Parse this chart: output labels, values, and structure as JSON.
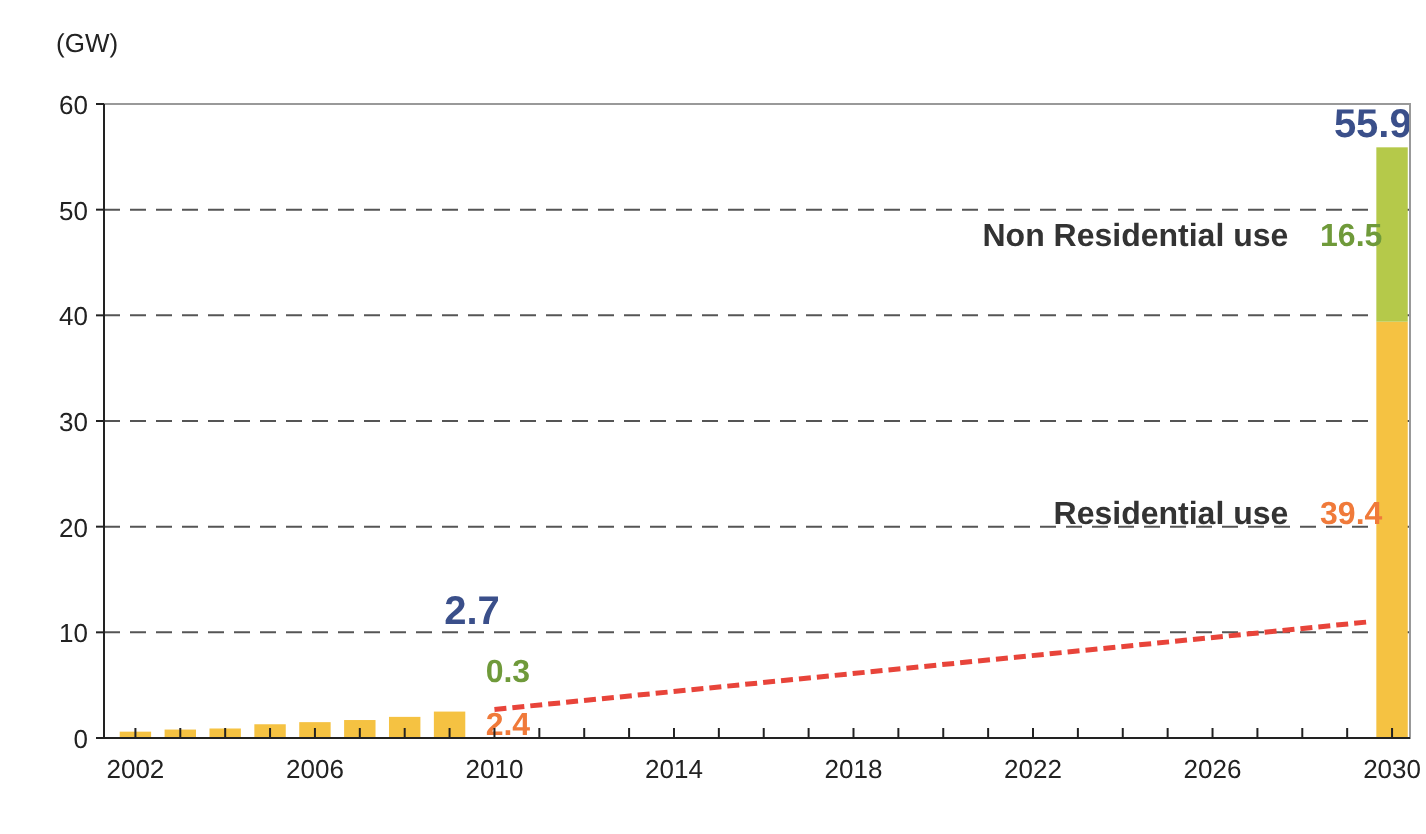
{
  "chart_data": {
    "type": "bar",
    "ylabel": "(GW)",
    "stacked": true,
    "grid": "y",
    "xlim": [
      2001.3,
      2030.4
    ],
    "xticks": [
      2002,
      {
        "value": 2003,
        "label": null
      },
      {
        "value": 2004,
        "label": null
      },
      {
        "value": 2005,
        "label": null
      },
      2006,
      {
        "value": 2007,
        "label": null
      },
      {
        "value": 2008,
        "label": null
      },
      {
        "value": 2009,
        "label": null
      },
      2010,
      {
        "value": 2011,
        "label": null
      },
      {
        "value": 2012,
        "label": null
      },
      {
        "value": 2013,
        "label": null
      },
      2014,
      {
        "value": 2015,
        "label": null
      },
      {
        "value": 2016,
        "label": null
      },
      {
        "value": 2017,
        "label": null
      },
      2018,
      {
        "value": 2019,
        "label": null
      },
      {
        "value": 2020,
        "label": null
      },
      {
        "value": 2021,
        "label": null
      },
      2022,
      {
        "value": 2023,
        "label": null
      },
      {
        "value": 2024,
        "label": null
      },
      {
        "value": 2025,
        "label": null
      },
      2026,
      {
        "value": 2027,
        "label": null
      },
      {
        "value": 2028,
        "label": null
      },
      {
        "value": 2029,
        "label": null
      },
      2030
    ],
    "ylim": [
      0,
      60
    ],
    "yticks": [
      0,
      10,
      20,
      30,
      40,
      50,
      60
    ],
    "x": [
      2002,
      2003,
      2004,
      2005,
      2006,
      2007,
      2008,
      2009,
      2030
    ],
    "series": [
      {
        "name": "Residential use",
        "color": "#f5c242",
        "values": [
          0.6,
          0.8,
          0.9,
          1.3,
          1.5,
          1.7,
          2.0,
          2.5,
          39.4
        ],
        "value_labels": [
          null,
          null,
          null,
          null,
          null,
          null,
          null,
          null,
          "39.4"
        ]
      },
      {
        "name": "Non Residential use",
        "color": "#b5c94a",
        "values": [
          null,
          null,
          null,
          null,
          null,
          null,
          null,
          null,
          16.5
        ],
        "value_labels": [
          null,
          null,
          null,
          null,
          null,
          null,
          null,
          null,
          "16.5"
        ]
      },
      {
        "type": "line",
        "color": "#e8443a",
        "line_style": "dashed",
        "x": [
          2010,
          2029.5
        ],
        "values": [
          2.7,
          11
        ]
      }
    ],
    "totals": [
      null,
      null,
      null,
      null,
      null,
      null,
      null,
      null,
      "55.9"
    ],
    "annotations": [
      "2.7",
      "0.3",
      "2.4"
    ]
  }
}
